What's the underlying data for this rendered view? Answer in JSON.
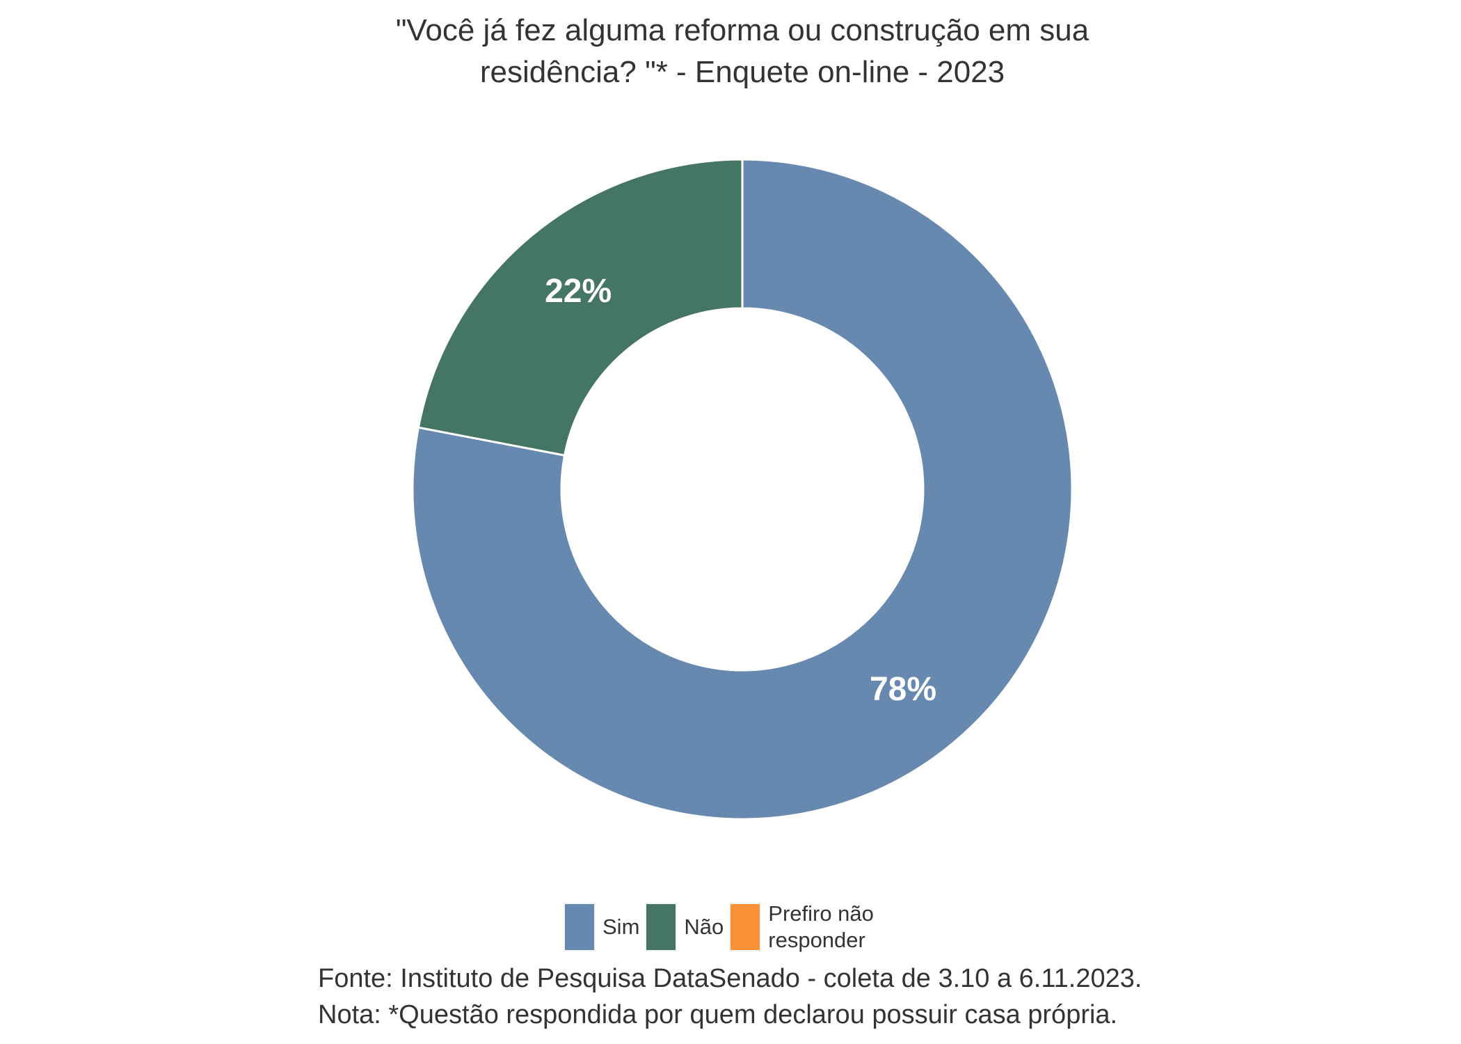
{
  "chart_data": {
    "type": "pie",
    "variant": "donut",
    "title_line1": "\"Você já fez alguma reforma ou construção em sua",
    "title_line2": "residência? \"* - Enquete on-line - 2023",
    "categories": [
      "Sim",
      "Não",
      "Prefiro não responder"
    ],
    "values": [
      78,
      22,
      0
    ],
    "value_labels": [
      "78%",
      "22%",
      ""
    ],
    "colors": [
      "#6789B0",
      "#457563",
      "#FC913A"
    ],
    "legend": [
      {
        "label": "Sim"
      },
      {
        "label": "Não"
      },
      {
        "label_line1": "Prefiro não",
        "label_line2": "responder"
      }
    ],
    "legend_position": "bottom"
  },
  "footer": {
    "source": "Fonte: Instituto de Pesquisa DataSenado - coleta de 3.10 a 6.11.2023.",
    "note": "Nota: *Questão respondida por quem declarou possuir casa própria."
  }
}
